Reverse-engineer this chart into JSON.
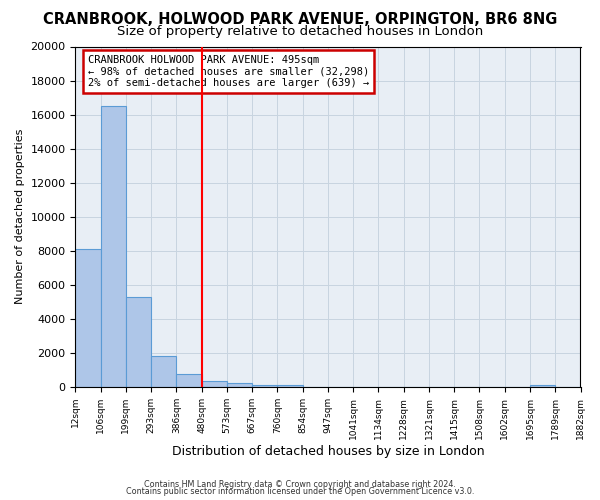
{
  "title": "CRANBROOK, HOLWOOD PARK AVENUE, ORPINGTON, BR6 8NG",
  "subtitle": "Size of property relative to detached houses in London",
  "xlabel": "Distribution of detached houses by size in London",
  "ylabel": "Number of detached properties",
  "bar_values": [
    8100,
    16500,
    5300,
    1850,
    750,
    350,
    250,
    150,
    100,
    0,
    0,
    0,
    0,
    0,
    0,
    0,
    0,
    0,
    150,
    0
  ],
  "bin_labels": [
    "12sqm",
    "106sqm",
    "199sqm",
    "293sqm",
    "386sqm",
    "480sqm",
    "573sqm",
    "667sqm",
    "760sqm",
    "854sqm",
    "947sqm",
    "1041sqm",
    "1134sqm",
    "1228sqm",
    "1321sqm",
    "1415sqm",
    "1508sqm",
    "1602sqm",
    "1695sqm",
    "1789sqm",
    "1882sqm"
  ],
  "bar_color": "#aec6e8",
  "bar_edge_color": "#5b9bd5",
  "red_line_x": 5.0,
  "annotation_line1": "CRANBROOK HOLWOOD PARK AVENUE: 495sqm",
  "annotation_line2": "← 98% of detached houses are smaller (32,298)",
  "annotation_line3": "2% of semi-detached houses are larger (639) →",
  "annotation_box_color": "#ffffff",
  "annotation_box_edge": "#cc0000",
  "ylim": [
    0,
    20000
  ],
  "yticks": [
    0,
    2000,
    4000,
    6000,
    8000,
    10000,
    12000,
    14000,
    16000,
    18000,
    20000
  ],
  "grid_color": "#c8d4e0",
  "bg_color": "#e8eef5",
  "footer1": "Contains HM Land Registry data © Crown copyright and database right 2024.",
  "footer2": "Contains public sector information licensed under the Open Government Licence v3.0.",
  "title_fontsize": 10.5,
  "subtitle_fontsize": 9.5
}
